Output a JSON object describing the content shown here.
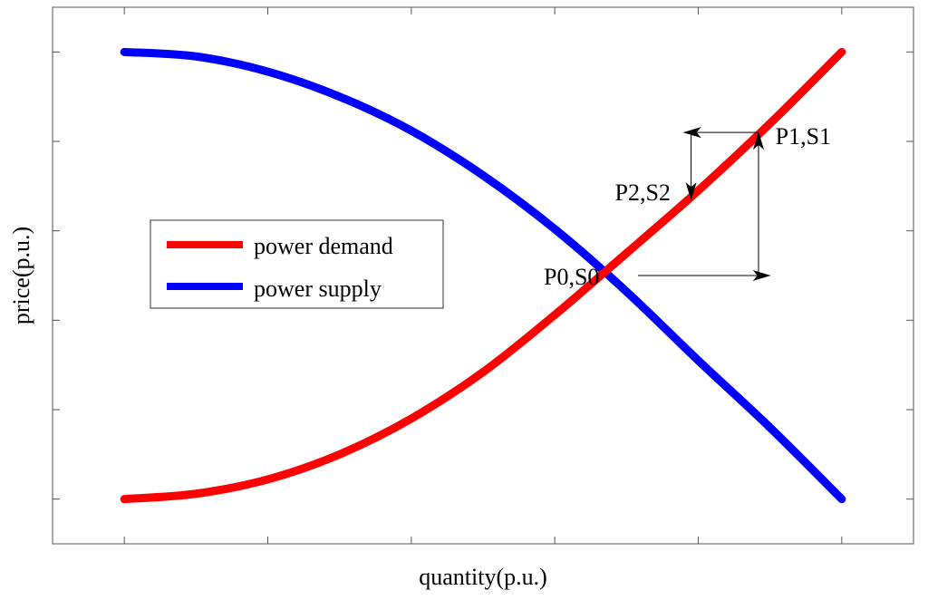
{
  "chart_data": {
    "type": "line",
    "title": "",
    "xlabel": "quantity(p.u.)",
    "ylabel": "price(p.u.)",
    "xlim": [
      -0.5,
      5.5
    ],
    "ylim": [
      -0.5,
      5.5
    ],
    "x_ticks": [
      0,
      1,
      2,
      3,
      4,
      5
    ],
    "y_ticks": [
      0,
      1,
      2,
      3,
      4,
      5
    ],
    "tick_labels_shown": false,
    "grid": false,
    "legend_position": "middle-left",
    "series": [
      {
        "name": "power demand",
        "color": "#ff0000",
        "x": [
          0,
          0.5,
          1,
          1.5,
          2,
          2.5,
          3,
          3.5,
          4,
          4.5,
          5
        ],
        "y": [
          0,
          0.06,
          0.22,
          0.5,
          0.9,
          1.42,
          2.06,
          2.75,
          3.45,
          4.2,
          5.0
        ]
      },
      {
        "name": "power supply",
        "color": "#0000ff",
        "x": [
          0,
          0.5,
          1,
          1.5,
          2,
          2.5,
          3,
          3.5,
          4,
          4.5,
          5
        ],
        "y": [
          5.0,
          4.95,
          4.78,
          4.5,
          4.12,
          3.62,
          3.02,
          2.32,
          1.55,
          0.8,
          0.0
        ]
      }
    ],
    "annotations": [
      {
        "label": "P0,S0",
        "x": 3.58,
        "y": 2.5
      },
      {
        "label": "P1,S1",
        "x": 4.5,
        "y": 3.95
      },
      {
        "label": "P2,S2",
        "x": 4.0,
        "y": 3.4
      }
    ],
    "arrows": [
      {
        "from": [
          3.58,
          2.5
        ],
        "to": [
          4.5,
          2.5
        ]
      },
      {
        "from": [
          4.42,
          2.5
        ],
        "to": [
          4.42,
          4.1
        ]
      },
      {
        "from": [
          4.42,
          4.1
        ],
        "to": [
          3.9,
          4.1
        ]
      },
      {
        "from": [
          3.95,
          4.1
        ],
        "to": [
          3.95,
          3.35
        ]
      }
    ]
  }
}
